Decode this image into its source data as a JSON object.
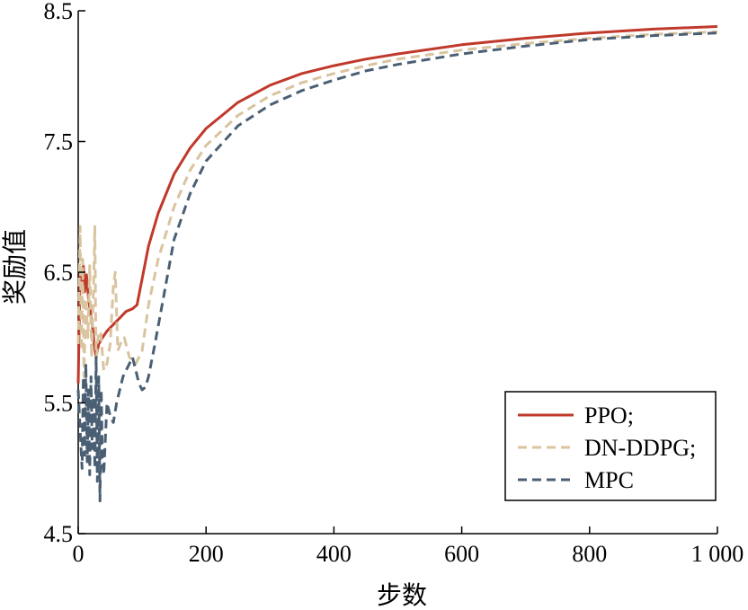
{
  "chart_data": {
    "type": "line",
    "title": "",
    "xlabel": "步数",
    "ylabel": "奖励值",
    "xlim": [
      0,
      1000
    ],
    "ylim": [
      4.5,
      8.5
    ],
    "xticks": [
      0,
      200,
      400,
      600,
      800,
      1000
    ],
    "xtick_labels": [
      "0",
      "200",
      "400",
      "600",
      "800",
      "1 000"
    ],
    "yticks": [
      4.5,
      5.5,
      6.5,
      7.5,
      8.5
    ],
    "ytick_labels": [
      "4.5",
      "5.5",
      "6.5",
      "7.5",
      "8.5"
    ],
    "grid": false,
    "legend_position": "bottom-right",
    "series": [
      {
        "name": "PPO;",
        "color": "#c0392b",
        "dash": "solid",
        "x": [
          0,
          3,
          6,
          8,
          10,
          13,
          16,
          19,
          22,
          25,
          28,
          32,
          38,
          45,
          55,
          65,
          75,
          85,
          92,
          100,
          110,
          125,
          150,
          175,
          200,
          250,
          300,
          350,
          400,
          450,
          500,
          600,
          700,
          800,
          900,
          1000
        ],
        "y": [
          5.65,
          6.5,
          6.4,
          6.55,
          6.35,
          6.48,
          6.3,
          6.2,
          6.1,
          5.95,
          5.85,
          5.95,
          6.0,
          6.05,
          6.1,
          6.15,
          6.2,
          6.22,
          6.25,
          6.45,
          6.7,
          6.95,
          7.25,
          7.45,
          7.6,
          7.8,
          7.93,
          8.02,
          8.08,
          8.13,
          8.17,
          8.24,
          8.29,
          8.33,
          8.36,
          8.38
        ]
      },
      {
        "name": "DN-DDPG;",
        "color": "#d9c49f",
        "dash": "10,6",
        "x": [
          0,
          3,
          5,
          7,
          9,
          12,
          15,
          18,
          21,
          24,
          26,
          28,
          31,
          35,
          40,
          45,
          50,
          55,
          58,
          62,
          66,
          72,
          80,
          90,
          100,
          110,
          125,
          150,
          175,
          200,
          250,
          300,
          350,
          400,
          450,
          500,
          600,
          700,
          800,
          900,
          1000
        ],
        "y": [
          5.95,
          6.85,
          5.9,
          6.6,
          5.7,
          6.3,
          6.0,
          6.55,
          5.85,
          6.4,
          6.85,
          5.8,
          6.0,
          6.05,
          5.75,
          5.8,
          5.95,
          6.4,
          6.5,
          5.9,
          5.95,
          6.0,
          5.85,
          5.8,
          5.9,
          6.25,
          6.6,
          7.0,
          7.28,
          7.47,
          7.7,
          7.85,
          7.95,
          8.02,
          8.08,
          8.13,
          8.2,
          8.25,
          8.29,
          8.32,
          8.34
        ]
      },
      {
        "name": "MPC",
        "color": "#4a5f73",
        "dash": "10,6",
        "x": [
          0,
          3,
          6,
          8,
          10,
          12,
          14,
          16,
          18,
          20,
          22,
          24,
          26,
          28,
          30,
          32,
          34,
          36,
          38,
          40,
          45,
          50,
          55,
          60,
          65,
          70,
          75,
          80,
          85,
          90,
          95,
          100,
          105,
          110,
          120,
          135,
          150,
          175,
          200,
          250,
          300,
          350,
          400,
          450,
          500,
          600,
          700,
          800,
          900,
          1000
        ],
        "y": [
          5.6,
          5.3,
          5.0,
          5.7,
          5.1,
          5.8,
          5.05,
          5.6,
          4.95,
          5.7,
          5.15,
          5.55,
          5.0,
          5.85,
          4.9,
          5.7,
          4.75,
          5.6,
          5.05,
          4.95,
          5.5,
          5.4,
          5.35,
          5.5,
          5.6,
          5.7,
          5.75,
          5.8,
          5.85,
          5.75,
          5.65,
          5.6,
          5.62,
          5.7,
          5.95,
          6.35,
          6.75,
          7.1,
          7.35,
          7.62,
          7.78,
          7.89,
          7.97,
          8.04,
          8.09,
          8.17,
          8.23,
          8.28,
          8.31,
          8.33
        ]
      }
    ]
  }
}
